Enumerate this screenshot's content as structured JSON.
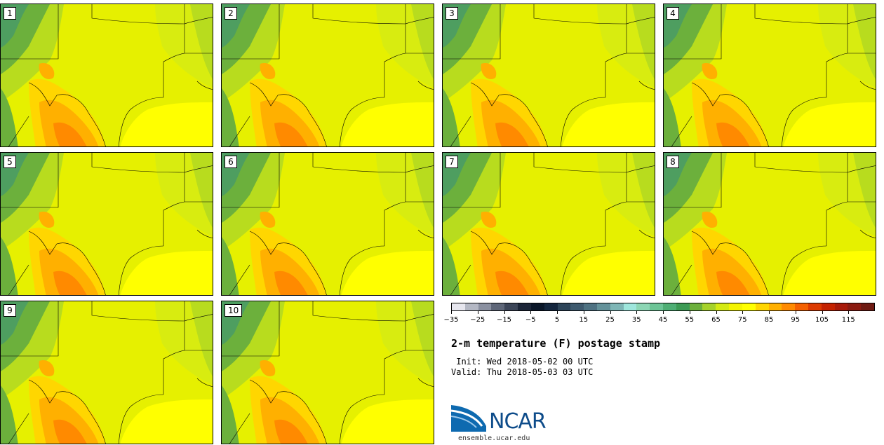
{
  "panels": [
    {
      "label": "1"
    },
    {
      "label": "2"
    },
    {
      "label": "3"
    },
    {
      "label": "4"
    },
    {
      "label": "5"
    },
    {
      "label": "6"
    },
    {
      "label": "7"
    },
    {
      "label": "8"
    },
    {
      "label": "9"
    },
    {
      "label": "10"
    }
  ],
  "colorbar": {
    "colors": [
      "#e6e6ee",
      "#b4b8c4",
      "#8a90a0",
      "#5e6678",
      "#3c4558",
      "#1c2538",
      "#0a1628",
      "#14263e",
      "#2c4458",
      "#3e5a6e",
      "#4e7282",
      "#64929a",
      "#7eb6b6",
      "#9ee6dc",
      "#8cd6b4",
      "#6cc496",
      "#4eae74",
      "#3c9a54",
      "#6cb03c",
      "#a6d22a",
      "#d4ea12",
      "#f4f400",
      "#ffff00",
      "#ffd600",
      "#ffb000",
      "#ff8a00",
      "#f46000",
      "#dc3a00",
      "#c42200",
      "#a81a0a",
      "#8a1a10",
      "#6e1a12"
    ],
    "tick_values": [
      "−35",
      "−25",
      "−15",
      "−5",
      "5",
      "15",
      "25",
      "35",
      "45",
      "55",
      "65",
      "75",
      "85",
      "95",
      "105",
      "115"
    ]
  },
  "title": "2-m temperature (F) postage stamp",
  "init_text": " Init: Wed 2018-05-02 00 UTC",
  "valid_text": "Valid: Thu 2018-05-03 03 UTC",
  "logo": {
    "text": "NCAR",
    "url": "ensemble.ucar.edu"
  }
}
